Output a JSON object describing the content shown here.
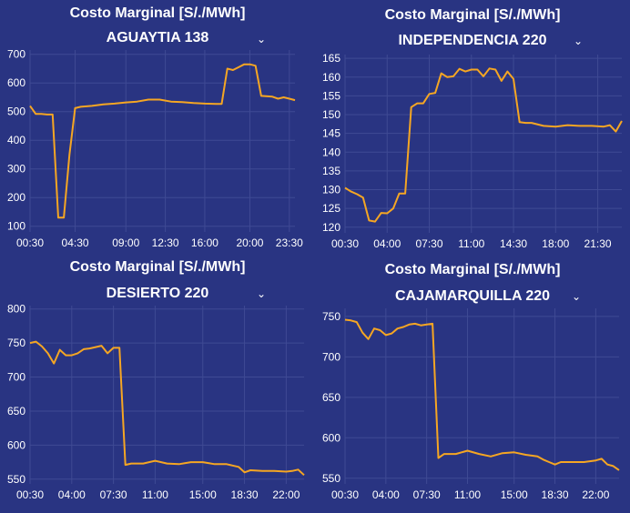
{
  "theme": {
    "background": "#293482",
    "line_color": "#f5a623",
    "grid_color": "#3f4a94",
    "text_color": "#ffffff"
  },
  "chart_data": [
    {
      "type": "line",
      "title": "Costo Marginal [S/./MWh]",
      "node": "AGUAYTIA 138",
      "x": [
        "00:30",
        "01:00",
        "01:30",
        "02:00",
        "02:30",
        "03:00",
        "03:30",
        "04:00",
        "04:30",
        "05:00",
        "06:00",
        "07:00",
        "08:00",
        "09:00",
        "10:00",
        "11:00",
        "12:00",
        "13:00",
        "14:00",
        "15:00",
        "16:00",
        "17:00",
        "17:30",
        "18:00",
        "18:30",
        "19:00",
        "19:30",
        "20:00",
        "20:30",
        "21:00",
        "22:00",
        "22:30",
        "23:00",
        "23:30",
        "24:00"
      ],
      "values": [
        520,
        492,
        492,
        490,
        490,
        130,
        130,
        350,
        512,
        517,
        520,
        525,
        528,
        532,
        535,
        542,
        542,
        535,
        533,
        530,
        528,
        527,
        527,
        650,
        645,
        655,
        665,
        665,
        660,
        555,
        552,
        545,
        550,
        545,
        540
      ],
      "xticks": [
        "00:30",
        "04:30",
        "09:00",
        "12:30",
        "16:00",
        "20:00",
        "23:30"
      ],
      "yticks": [
        100,
        200,
        300,
        400,
        500,
        600,
        700
      ],
      "ylim": [
        80,
        715
      ]
    },
    {
      "type": "line",
      "title": "Costo Marginal [S/./MWh]",
      "node": "INDEPENDENCIA 220",
      "x": [
        "00:30",
        "01:00",
        "01:30",
        "02:00",
        "02:30",
        "03:00",
        "03:30",
        "04:00",
        "04:30",
        "05:00",
        "05:30",
        "06:00",
        "06:30",
        "07:00",
        "07:30",
        "08:00",
        "08:30",
        "09:00",
        "09:30",
        "10:00",
        "10:30",
        "11:00",
        "11:30",
        "12:00",
        "12:30",
        "13:00",
        "13:30",
        "14:00",
        "14:30",
        "15:00",
        "15:30",
        "16:00",
        "17:00",
        "18:00",
        "19:00",
        "20:00",
        "21:00",
        "22:00",
        "22:30",
        "23:00",
        "23:30"
      ],
      "values": [
        130.5,
        129.5,
        128.8,
        127.9,
        121.8,
        121.5,
        123.8,
        123.7,
        125,
        129,
        129,
        152,
        153,
        153,
        155.5,
        155.8,
        161,
        160,
        160.2,
        162.2,
        161.5,
        162,
        162,
        160.2,
        162.3,
        162,
        159,
        161.5,
        159.5,
        148,
        147.8,
        147.8,
        147,
        146.8,
        147.2,
        147,
        147,
        146.8,
        147.2,
        145.5,
        148.3
      ],
      "xticks": [
        "00:30",
        "04:00",
        "07:30",
        "11:00",
        "14:30",
        "18:00",
        "21:30"
      ],
      "yticks": [
        120,
        125,
        130,
        135,
        140,
        145,
        150,
        155,
        160,
        165
      ],
      "ylim": [
        118.5,
        166
      ]
    },
    {
      "type": "line",
      "title": "Costo Marginal [S/./MWh]",
      "node": "DESIERTO 220",
      "x": [
        "00:30",
        "01:00",
        "01:30",
        "02:00",
        "02:30",
        "03:00",
        "03:30",
        "04:00",
        "04:30",
        "05:00",
        "05:30",
        "06:00",
        "06:30",
        "07:00",
        "07:30",
        "08:00",
        "08:30",
        "09:00",
        "09:30",
        "10:00",
        "11:00",
        "12:00",
        "13:00",
        "14:00",
        "15:00",
        "16:00",
        "17:00",
        "18:00",
        "18:30",
        "19:00",
        "20:00",
        "21:00",
        "22:00",
        "22:30",
        "23:00",
        "23:30"
      ],
      "values": [
        750,
        752,
        745,
        735,
        720,
        740,
        732,
        732,
        735,
        741,
        742,
        744,
        746,
        735,
        743,
        743,
        571,
        573,
        573,
        573,
        577,
        573,
        572,
        575,
        575,
        572,
        572,
        568,
        560,
        563,
        562,
        562,
        561,
        562,
        564,
        556
      ],
      "xticks": [
        "00:30",
        "04:00",
        "07:30",
        "11:00",
        "15:00",
        "18:30",
        "22:00"
      ],
      "yticks": [
        550,
        600,
        650,
        700,
        750,
        800
      ],
      "ylim": [
        543,
        805
      ]
    },
    {
      "type": "line",
      "title": "Costo Marginal [S/./MWh]",
      "node": "CAJAMARQUILLA 220",
      "x": [
        "00:30",
        "01:00",
        "01:30",
        "02:00",
        "02:30",
        "03:00",
        "03:30",
        "04:00",
        "04:30",
        "05:00",
        "05:30",
        "06:00",
        "06:30",
        "07:00",
        "07:30",
        "08:00",
        "08:30",
        "09:00",
        "10:00",
        "11:00",
        "12:00",
        "13:00",
        "14:00",
        "15:00",
        "16:00",
        "17:00",
        "17:30",
        "18:00",
        "18:30",
        "19:00",
        "20:00",
        "21:00",
        "22:00",
        "22:30",
        "23:00",
        "23:30",
        "24:00"
      ],
      "values": [
        746,
        745,
        743,
        730,
        722,
        735,
        733,
        727,
        729,
        735,
        737,
        740,
        741,
        739,
        740,
        741,
        575,
        580,
        580,
        584,
        580,
        577,
        581,
        582,
        579,
        577,
        573,
        570,
        567,
        570,
        570,
        570,
        572,
        574,
        567,
        565,
        560
      ],
      "xticks": [
        "00:30",
        "04:00",
        "07:30",
        "11:00",
        "15:00",
        "18:30",
        "22:00"
      ],
      "yticks": [
        550,
        600,
        650,
        700,
        750
      ],
      "ylim": [
        543,
        760
      ]
    }
  ]
}
